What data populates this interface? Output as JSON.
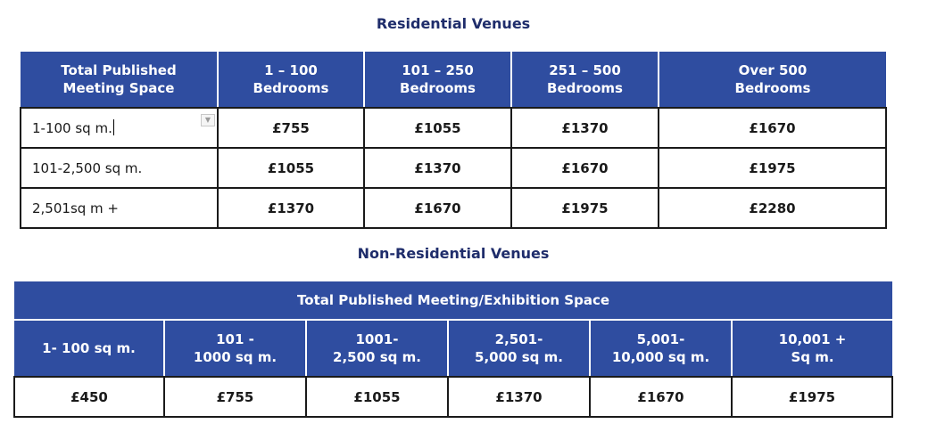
{
  "residential": {
    "title": "Residential Venues",
    "headers": [
      [
        "Total Published",
        "Meeting Space"
      ],
      [
        "1 – 100",
        "Bedrooms"
      ],
      [
        "101 – 250",
        "Bedrooms"
      ],
      [
        "251 – 500",
        "Bedrooms"
      ],
      [
        "Over 500",
        "Bedrooms"
      ]
    ],
    "rows": [
      {
        "label": "1-100 sq m.",
        "values": [
          "£755",
          "£1055",
          "£1370",
          "£1670"
        ]
      },
      {
        "label": "101-2,500 sq m.",
        "values": [
          "£1055",
          "£1370",
          "£1670",
          "£1975"
        ]
      },
      {
        "label": "2,501sq m +",
        "values": [
          "£1370",
          "£1670",
          "£1975",
          "£2280"
        ]
      }
    ]
  },
  "non_residential": {
    "title": "Non-Residential Venues",
    "span_header": "Total Published Meeting/Exhibition Space",
    "headers": [
      [
        "1- 100 sq m."
      ],
      [
        "101 -",
        "1000 sq m."
      ],
      [
        "1001-",
        "2,500 sq m."
      ],
      [
        "2,501-",
        "5,000 sq m."
      ],
      [
        "5,001-",
        "10,000 sq m."
      ],
      [
        "10,001 +",
        "Sq m."
      ]
    ],
    "values": [
      "£450",
      "£755",
      "£1055",
      "£1370",
      "£1670",
      "£1975"
    ]
  }
}
